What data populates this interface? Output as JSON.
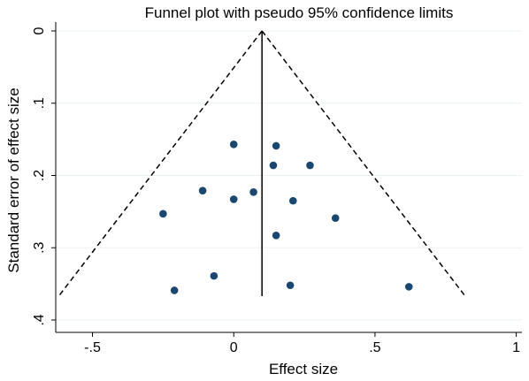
{
  "chart_data": {
    "type": "scatter",
    "title": "Funnel plot with pseudo 95% confidence limits",
    "xlabel": "Effect size",
    "ylabel": "Standard error of effect size",
    "xlim": [
      -0.63,
      1.02
    ],
    "ylim": [
      0,
      0.405
    ],
    "y_reversed": true,
    "grid": true,
    "x_ticks": [
      {
        "value": -0.5,
        "label": "-.5"
      },
      {
        "value": 0,
        "label": "0"
      },
      {
        "value": 0.5,
        "label": ".5"
      },
      {
        "value": 1,
        "label": "1"
      }
    ],
    "y_ticks": [
      {
        "value": 0,
        "label": "0"
      },
      {
        "value": 0.1,
        "label": ".1"
      },
      {
        "value": 0.2,
        "label": ".2"
      },
      {
        "value": 0.3,
        "label": ".3"
      },
      {
        "value": 0.4,
        "label": ".4"
      }
    ],
    "pooled_effect": 0.1,
    "ci_se_max": 0.367,
    "ci_z": 1.96,
    "points": [
      {
        "x": 0.0,
        "y": 0.157
      },
      {
        "x": 0.15,
        "y": 0.159
      },
      {
        "x": 0.14,
        "y": 0.186
      },
      {
        "x": 0.27,
        "y": 0.186
      },
      {
        "x": -0.11,
        "y": 0.221
      },
      {
        "x": 0.07,
        "y": 0.223
      },
      {
        "x": 0.0,
        "y": 0.233
      },
      {
        "x": 0.21,
        "y": 0.235
      },
      {
        "x": -0.25,
        "y": 0.253
      },
      {
        "x": 0.36,
        "y": 0.259
      },
      {
        "x": 0.15,
        "y": 0.283
      },
      {
        "x": -0.07,
        "y": 0.339
      },
      {
        "x": -0.21,
        "y": 0.359
      },
      {
        "x": 0.2,
        "y": 0.352
      },
      {
        "x": 0.62,
        "y": 0.354
      }
    ]
  }
}
